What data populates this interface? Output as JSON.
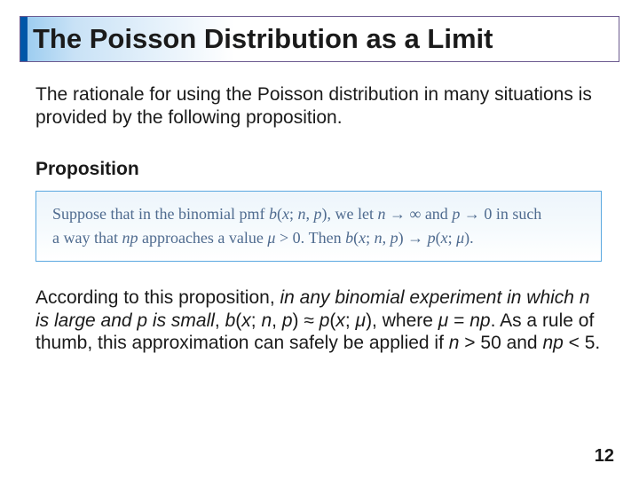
{
  "title": "The Poisson Distribution as a Limit",
  "para1": "The rationale for using the Poisson distribution in many situations is provided by the following proposition.",
  "prop_label": "Proposition",
  "prop_line1_a": "Suppose that in the binomial pmf ",
  "prop_line1_b": "b",
  "prop_line1_c": "(",
  "prop_line1_d": "x",
  "prop_line1_e": "; ",
  "prop_line1_f": "n",
  "prop_line1_g": ", ",
  "prop_line1_h": "p",
  "prop_line1_i": "), we let ",
  "prop_line1_j": "n",
  "prop_line1_k": " → ∞ and ",
  "prop_line1_l": "p",
  "prop_line1_m": " → 0 in such",
  "prop_line2_a": "a way that ",
  "prop_line2_b": "np",
  "prop_line2_c": " approaches a value ",
  "prop_line2_d": "μ",
  "prop_line2_e": " > 0. Then ",
  "prop_line2_f": "b",
  "prop_line2_g": "(",
  "prop_line2_h": "x",
  "prop_line2_i": "; ",
  "prop_line2_j": "n",
  "prop_line2_k": ", ",
  "prop_line2_l": "p",
  "prop_line2_m": ") → ",
  "prop_line2_n": "p",
  "prop_line2_o": "(",
  "prop_line2_p": "x",
  "prop_line2_q": "; ",
  "prop_line2_r": "μ",
  "prop_line2_s": ").",
  "p2_a": "According to this proposition, ",
  "p2_b": "in any binomial experiment in which n is large and p is small",
  "p2_c": ", ",
  "p2_d": "b",
  "p2_e": "(",
  "p2_f": "x",
  "p2_g": "; ",
  "p2_h": "n",
  "p2_i": ", ",
  "p2_j": "p",
  "p2_k": ") ≈ ",
  "p2_l": "p",
  "p2_m": "(",
  "p2_n": "x",
  "p2_o": "; ",
  "p2_p": "μ",
  "p2_q": "), where ",
  "p2_r": "μ",
  "p2_s": " = ",
  "p2_t": "np",
  "p2_u": ". As a rule of thumb, this approximation can safely be applied if ",
  "p2_v": "n",
  "p2_w": " > 50 and ",
  "p2_x": "np",
  "p2_y": " < 5.",
  "page_num": "12",
  "colors": {
    "accent_bar": "#0057a8",
    "title_border": "#6b5a8f",
    "prop_border": "#5aa8e0",
    "prop_text": "#4f6b8f"
  }
}
